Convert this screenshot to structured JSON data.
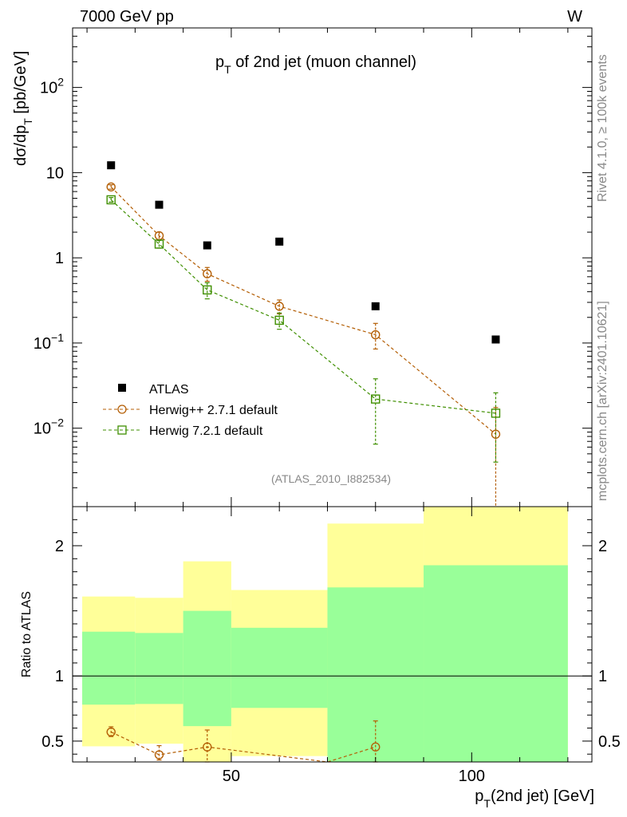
{
  "header": {
    "left_label": "7000 GeV pp",
    "right_label": "W"
  },
  "side_labels": {
    "rivet": "Rivet 4.1.0, ≥ 100k events",
    "mcplots": "mcplots.cern.ch [arXiv:2401.10621]"
  },
  "colors": {
    "atlas": "#000000",
    "herwigpp": "#b45f06",
    "herwig7": "#3f8f00",
    "band_yellow": "#ffff99",
    "band_green": "#99ff99"
  },
  "chart_data": [
    {
      "type": "scatter",
      "title_main": "p",
      "title_sub": "T",
      "title_rest": " of 2nd jet (muon channel)",
      "ylabel_main": "dσ/dp",
      "ylabel_sub": "T",
      "ylabel_rest": " [pb/GeV]",
      "yscale": "log",
      "ylim": [
        0.0012,
        500
      ],
      "xlim": [
        17,
        125
      ],
      "y_ticks": [
        {
          "value": 0.01,
          "base": "10",
          "exp": "−2"
        },
        {
          "value": 0.1,
          "base": "10",
          "exp": "−1"
        },
        {
          "value": 1,
          "base": "1",
          "exp": ""
        },
        {
          "value": 10,
          "base": "10",
          "exp": ""
        },
        {
          "value": 100,
          "base": "10",
          "exp": "2"
        }
      ],
      "analysis_label": "(ATLAS_2010_I882534)",
      "legend_position": "bottom-left",
      "series": [
        {
          "name": "ATLAS",
          "marker": "filled-square",
          "x": [
            25,
            35,
            45,
            60,
            80,
            105
          ],
          "y": [
            12.2,
            4.2,
            1.4,
            1.55,
            0.27,
            0.11
          ],
          "yerr_lo": [
            0,
            0,
            0,
            0,
            0,
            0
          ],
          "yerr_hi": [
            0,
            0,
            0,
            0,
            0,
            0
          ]
        },
        {
          "name": "Herwig++ 2.7.1 default",
          "marker": "open-circle",
          "x": [
            25,
            35,
            45,
            60,
            80,
            105
          ],
          "y": [
            6.8,
            1.82,
            0.65,
            0.27,
            0.125,
            0.0085
          ],
          "yerr_lo": [
            0.4,
            0.18,
            0.12,
            0.05,
            0.04,
            0.0085
          ],
          "yerr_hi": [
            0.4,
            0.18,
            0.12,
            0.05,
            0.045,
            0.009
          ]
        },
        {
          "name": "Herwig 7.2.1 default",
          "marker": "open-square",
          "x": [
            25,
            35,
            45,
            60,
            80,
            105
          ],
          "y": [
            4.8,
            1.45,
            0.42,
            0.185,
            0.022,
            0.015
          ],
          "yerr_lo": [
            0.3,
            0.15,
            0.09,
            0.04,
            0.0155,
            0.011
          ],
          "yerr_hi": [
            0.3,
            0.15,
            0.09,
            0.04,
            0.016,
            0.011
          ]
        }
      ]
    },
    {
      "type": "line",
      "ylabel": "Ratio to ATLAS",
      "xlabel_main": "p",
      "xlabel_sub": "T",
      "xlabel_rest": "(2nd jet) [GeV]",
      "ylim": [
        0.34,
        2.3
      ],
      "xlim": [
        17,
        125
      ],
      "x_ticks": [
        50,
        100
      ],
      "y_ticks": [
        0.5,
        1,
        2
      ],
      "bands": [
        {
          "x_lo": 19,
          "x_hi": 30,
          "yellow_lo": 0.46,
          "yellow_hi": 1.61,
          "green_lo": 0.78,
          "green_hi": 1.34
        },
        {
          "x_lo": 30,
          "x_hi": 40,
          "yellow_lo": 0.48,
          "yellow_hi": 1.6,
          "green_lo": 0.785,
          "green_hi": 1.33
        },
        {
          "x_lo": 40,
          "x_hi": 50,
          "yellow_lo": 0.34,
          "yellow_hi": 1.88,
          "green_lo": 0.615,
          "green_hi": 1.5
        },
        {
          "x_lo": 50,
          "x_hi": 70,
          "yellow_lo": 0.385,
          "yellow_hi": 1.66,
          "green_lo": 0.755,
          "green_hi": 1.37
        },
        {
          "x_lo": 70,
          "x_hi": 90,
          "yellow_lo": 0.34,
          "yellow_hi": 2.17,
          "green_lo": 0.34,
          "green_hi": 1.68
        },
        {
          "x_lo": 90,
          "x_hi": 120,
          "yellow_lo": 0.34,
          "yellow_hi": 2.3,
          "green_lo": 0.34,
          "green_hi": 1.85
        }
      ],
      "series": [
        {
          "name": "Herwig++ 2.7.1 default",
          "marker": "open-circle",
          "x": [
            25,
            35,
            45,
            80
          ],
          "y": [
            0.57,
            0.395,
            0.455,
            0.455
          ],
          "yerr_lo": [
            0.035,
            0.04,
            0.12,
            0.12
          ],
          "yerr_hi": [
            0.04,
            0.07,
            0.13,
            0.2
          ]
        }
      ]
    }
  ]
}
